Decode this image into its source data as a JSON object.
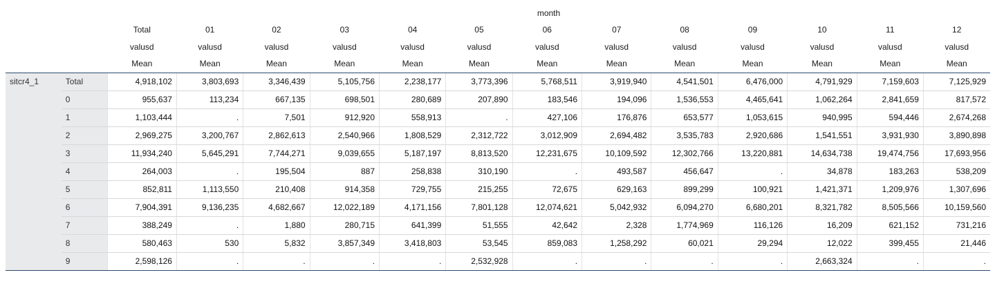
{
  "table": {
    "month_header": "month",
    "columns": [
      {
        "label": "Total",
        "var": "valusd",
        "stat": "Mean"
      },
      {
        "label": "01",
        "var": "valusd",
        "stat": "Mean"
      },
      {
        "label": "02",
        "var": "valusd",
        "stat": "Mean"
      },
      {
        "label": "03",
        "var": "valusd",
        "stat": "Mean"
      },
      {
        "label": "04",
        "var": "valusd",
        "stat": "Mean"
      },
      {
        "label": "05",
        "var": "valusd",
        "stat": "Mean"
      },
      {
        "label": "06",
        "var": "valusd",
        "stat": "Mean"
      },
      {
        "label": "07",
        "var": "valusd",
        "stat": "Mean"
      },
      {
        "label": "08",
        "var": "valusd",
        "stat": "Mean"
      },
      {
        "label": "09",
        "var": "valusd",
        "stat": "Mean"
      },
      {
        "label": "10",
        "var": "valusd",
        "stat": "Mean"
      },
      {
        "label": "11",
        "var": "valusd",
        "stat": "Mean"
      },
      {
        "label": "12",
        "var": "valusd",
        "stat": "Mean"
      }
    ],
    "row_variable": "sitcr4_1",
    "rows": [
      {
        "category": "Total",
        "values": [
          "4,918,102",
          "3,803,693",
          "3,346,439",
          "5,105,756",
          "2,238,177",
          "3,773,396",
          "5,768,511",
          "3,919,940",
          "4,541,501",
          "6,476,000",
          "4,791,929",
          "7,159,603",
          "7,125,929"
        ]
      },
      {
        "category": "0",
        "values": [
          "955,637",
          "113,234",
          "667,135",
          "698,501",
          "280,689",
          "207,890",
          "183,546",
          "194,096",
          "1,536,553",
          "4,465,641",
          "1,062,264",
          "2,841,659",
          "817,572"
        ]
      },
      {
        "category": "1",
        "values": [
          "1,103,444",
          ".",
          "7,501",
          "912,920",
          "558,913",
          ".",
          "427,106",
          "176,876",
          "653,577",
          "1,053,615",
          "940,995",
          "594,446",
          "2,674,268"
        ]
      },
      {
        "category": "2",
        "values": [
          "2,969,275",
          "3,200,767",
          "2,862,613",
          "2,540,966",
          "1,808,529",
          "2,312,722",
          "3,012,909",
          "2,694,482",
          "3,535,783",
          "2,920,686",
          "1,541,551",
          "3,931,930",
          "3,890,898"
        ]
      },
      {
        "category": "3",
        "values": [
          "11,934,240",
          "5,645,291",
          "7,744,271",
          "9,039,655",
          "5,187,197",
          "8,813,520",
          "12,231,675",
          "10,109,592",
          "12,302,766",
          "13,220,881",
          "14,634,738",
          "19,474,756",
          "17,693,956"
        ]
      },
      {
        "category": "4",
        "values": [
          "264,003",
          ".",
          "195,504",
          "887",
          "258,838",
          "310,190",
          ".",
          "493,587",
          "456,647",
          ".",
          "34,878",
          "183,263",
          "538,209"
        ]
      },
      {
        "category": "5",
        "values": [
          "852,811",
          "1,113,550",
          "210,408",
          "914,358",
          "729,755",
          "215,255",
          "72,675",
          "629,163",
          "899,299",
          "100,921",
          "1,421,371",
          "1,209,976",
          "1,307,696"
        ]
      },
      {
        "category": "6",
        "values": [
          "7,904,391",
          "9,136,235",
          "4,682,667",
          "12,022,189",
          "4,171,156",
          "7,801,128",
          "12,074,621",
          "5,042,932",
          "6,094,270",
          "6,680,201",
          "8,321,782",
          "8,505,566",
          "10,159,560"
        ]
      },
      {
        "category": "7",
        "values": [
          "388,249",
          ".",
          "1,880",
          "280,715",
          "641,399",
          "51,555",
          "42,642",
          "2,328",
          "1,774,969",
          "116,126",
          "16,209",
          "621,152",
          "731,216"
        ]
      },
      {
        "category": "8",
        "values": [
          "580,463",
          "530",
          "5,832",
          "3,857,349",
          "3,418,803",
          "53,545",
          "859,083",
          "1,258,292",
          "60,021",
          "29,294",
          "12,022",
          "399,455",
          "21,446"
        ]
      },
      {
        "category": "9",
        "values": [
          "2,598,126",
          ".",
          ".",
          ".",
          ".",
          "2,532,928",
          ".",
          ".",
          ".",
          ".",
          "2,663,324",
          ".",
          "."
        ]
      }
    ]
  }
}
